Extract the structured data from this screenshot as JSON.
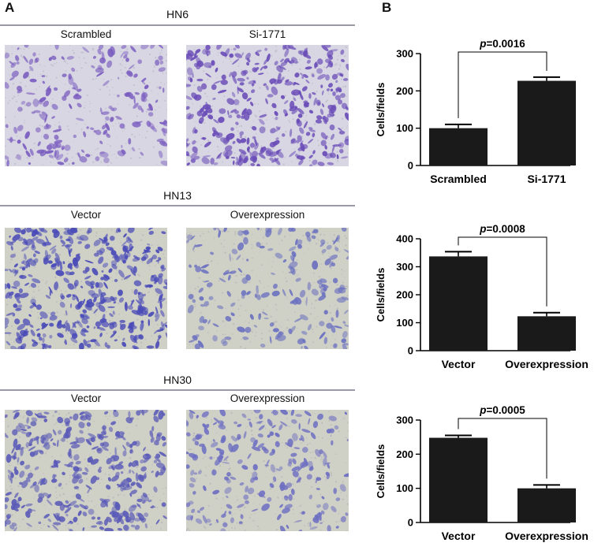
{
  "panels": {
    "a_label": "A",
    "b_label": "B"
  },
  "image_rows": [
    {
      "title": "HN6",
      "left_label": "Scrambled",
      "right_label": "Si-1771",
      "left_stain": "#7a5cc0",
      "right_stain": "#6a4cb8",
      "left_density": 0.35,
      "right_density": 0.75
    },
    {
      "title": "HN13",
      "left_label": "Vector",
      "right_label": "Overexpression",
      "left_stain": "#4a4bb8",
      "right_stain": "#6a70c0",
      "left_density": 0.85,
      "right_density": 0.3
    },
    {
      "title": "HN30",
      "left_label": "Vector",
      "right_label": "Overexpression",
      "left_stain": "#5a5ab8",
      "right_stain": "#6e6fc2",
      "left_density": 0.75,
      "right_density": 0.4
    }
  ],
  "colors": {
    "bar": "#1a1a1a",
    "rule": "#9b98a8",
    "bg_a": "#d8d6e2",
    "bg_b": "#cfd0c6"
  },
  "chart_data": [
    {
      "type": "bar",
      "categories": [
        "Scrambled",
        "Si-1771"
      ],
      "values": [
        100,
        227
      ],
      "errors": [
        10,
        10
      ],
      "ylabel": "Cells/fields",
      "ylim": [
        0,
        300
      ],
      "yticks": [
        "0",
        "100",
        "200",
        "300"
      ],
      "annotation": {
        "prefix": "p",
        "text": "=0.0016"
      }
    },
    {
      "type": "bar",
      "categories": [
        "Vector",
        "Overexpression"
      ],
      "values": [
        337,
        123
      ],
      "errors": [
        17,
        13
      ],
      "ylabel": "Cells/fields",
      "ylim": [
        0,
        400
      ],
      "yticks": [
        "0",
        "100",
        "200",
        "300",
        "400"
      ],
      "annotation": {
        "prefix": "p",
        "text": "=0.0008"
      }
    },
    {
      "type": "bar",
      "categories": [
        "Vector",
        "Overexpression"
      ],
      "values": [
        248,
        100
      ],
      "errors": [
        7,
        10
      ],
      "ylabel": "Cells/fields",
      "ylim": [
        0,
        300
      ],
      "yticks": [
        "0",
        "100",
        "200",
        "300"
      ],
      "annotation": {
        "prefix": "p",
        "text": "=0.0005"
      }
    }
  ]
}
